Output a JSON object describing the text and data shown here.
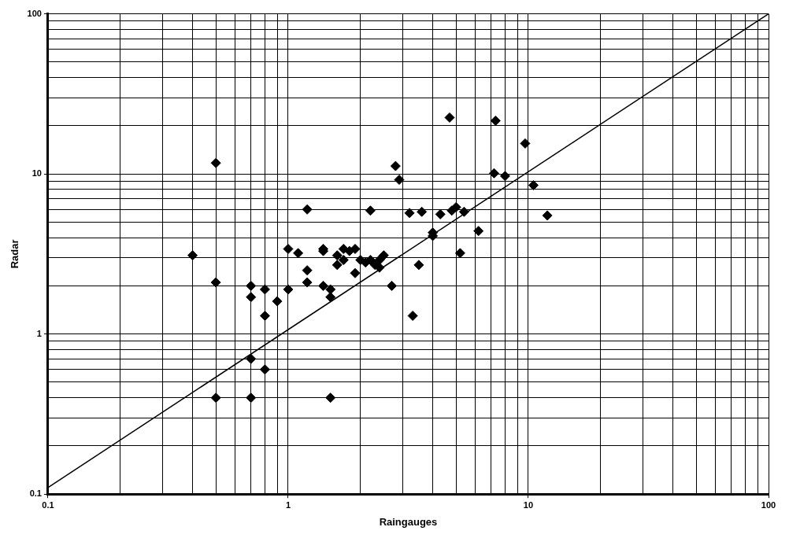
{
  "chart_data": {
    "type": "scatter",
    "xlabel": "Raingauges",
    "ylabel": "Radar",
    "log": "xy",
    "xlim": [
      0.1,
      100
    ],
    "ylim": [
      0.1,
      100
    ],
    "xticks": [
      0.1,
      {
        "value": 0.2,
        "label": null
      },
      {
        "value": 0.3,
        "label": null
      },
      {
        "value": 0.4,
        "label": null
      },
      {
        "value": 0.5,
        "label": null
      },
      {
        "value": 0.6,
        "label": null
      },
      {
        "value": 0.7,
        "label": null
      },
      {
        "value": 0.8,
        "label": null
      },
      {
        "value": 0.9,
        "label": null
      },
      1,
      {
        "value": 2,
        "label": null
      },
      {
        "value": 3,
        "label": null
      },
      {
        "value": 4,
        "label": null
      },
      {
        "value": 5,
        "label": null
      },
      {
        "value": 6,
        "label": null
      },
      {
        "value": 7,
        "label": null
      },
      {
        "value": 8,
        "label": null
      },
      {
        "value": 9,
        "label": null
      },
      10,
      {
        "value": 20,
        "label": null
      },
      {
        "value": 30,
        "label": null
      },
      {
        "value": 40,
        "label": null
      },
      {
        "value": 50,
        "label": null
      },
      {
        "value": 60,
        "label": null
      },
      {
        "value": 70,
        "label": null
      },
      {
        "value": 80,
        "label": null
      },
      {
        "value": 90,
        "label": null
      },
      100
    ],
    "yticks": [
      0.1,
      {
        "value": 0.2,
        "label": null
      },
      {
        "value": 0.3,
        "label": null
      },
      {
        "value": 0.4,
        "label": null
      },
      {
        "value": 0.5,
        "label": null
      },
      {
        "value": 0.6,
        "label": null
      },
      {
        "value": 0.7,
        "label": null
      },
      {
        "value": 0.8,
        "label": null
      },
      {
        "value": 0.9,
        "label": null
      },
      1,
      {
        "value": 2,
        "label": null
      },
      {
        "value": 3,
        "label": null
      },
      {
        "value": 4,
        "label": null
      },
      {
        "value": 5,
        "label": null
      },
      {
        "value": 6,
        "label": null
      },
      {
        "value": 7,
        "label": null
      },
      {
        "value": 8,
        "label": null
      },
      {
        "value": 9,
        "label": null
      },
      10,
      {
        "value": 20,
        "label": null
      },
      {
        "value": 30,
        "label": null
      },
      {
        "value": 40,
        "label": null
      },
      {
        "value": 50,
        "label": null
      },
      {
        "value": 60,
        "label": null
      },
      {
        "value": 70,
        "label": null
      },
      {
        "value": 80,
        "label": null
      },
      {
        "value": 90,
        "label": null
      },
      100
    ],
    "grid": true,
    "legend": false,
    "series": [
      {
        "color": "#000000",
        "marker": "diamond",
        "x": [
          0.4,
          0.5,
          0.5,
          0.5,
          0.7,
          0.7,
          0.7,
          0.7,
          0.8,
          0.8,
          0.8,
          0.9,
          1.0,
          1.0,
          1.1,
          1.2,
          1.2,
          1.2,
          1.4,
          1.4,
          1.4,
          1.5,
          1.5,
          1.5,
          1.6,
          1.6,
          1.7,
          1.7,
          1.8,
          1.9,
          1.9,
          2.0,
          2.1,
          2.2,
          2.2,
          2.3,
          2.4,
          2.4,
          2.5,
          2.7,
          2.8,
          2.9,
          3.2,
          3.3,
          3.5,
          3.6,
          4.0,
          4.0,
          4.3,
          4.7,
          4.8,
          5.0,
          5.2,
          5.4,
          6.2,
          7.2,
          7.3,
          8.0,
          9.7,
          10.5,
          12
        ],
        "values": [
          3.1,
          11.7,
          2.1,
          0.4,
          2.0,
          1.7,
          0.7,
          0.4,
          1.9,
          1.3,
          0.6,
          1.6,
          3.4,
          1.9,
          3.2,
          6.0,
          2.5,
          2.1,
          3.4,
          3.3,
          2.0,
          1.9,
          1.7,
          0.4,
          3.1,
          2.7,
          3.4,
          2.9,
          3.3,
          3.4,
          2.4,
          2.9,
          2.8,
          2.9,
          5.9,
          2.7,
          2.9,
          2.6,
          3.1,
          2.0,
          11.2,
          9.2,
          5.7,
          1.3,
          2.7,
          5.8,
          4.1,
          4.3,
          5.6,
          22.5,
          5.9,
          6.2,
          3.2,
          5.8,
          4.4,
          10.1,
          21.5,
          9.7,
          15.5,
          8.5,
          5.5
        ]
      },
      {
        "type": "line",
        "color": "#000000",
        "x": [
          0.1,
          100
        ],
        "values": [
          0.11,
          100
        ],
        "line_style": "solid",
        "marker": "none"
      }
    ]
  }
}
